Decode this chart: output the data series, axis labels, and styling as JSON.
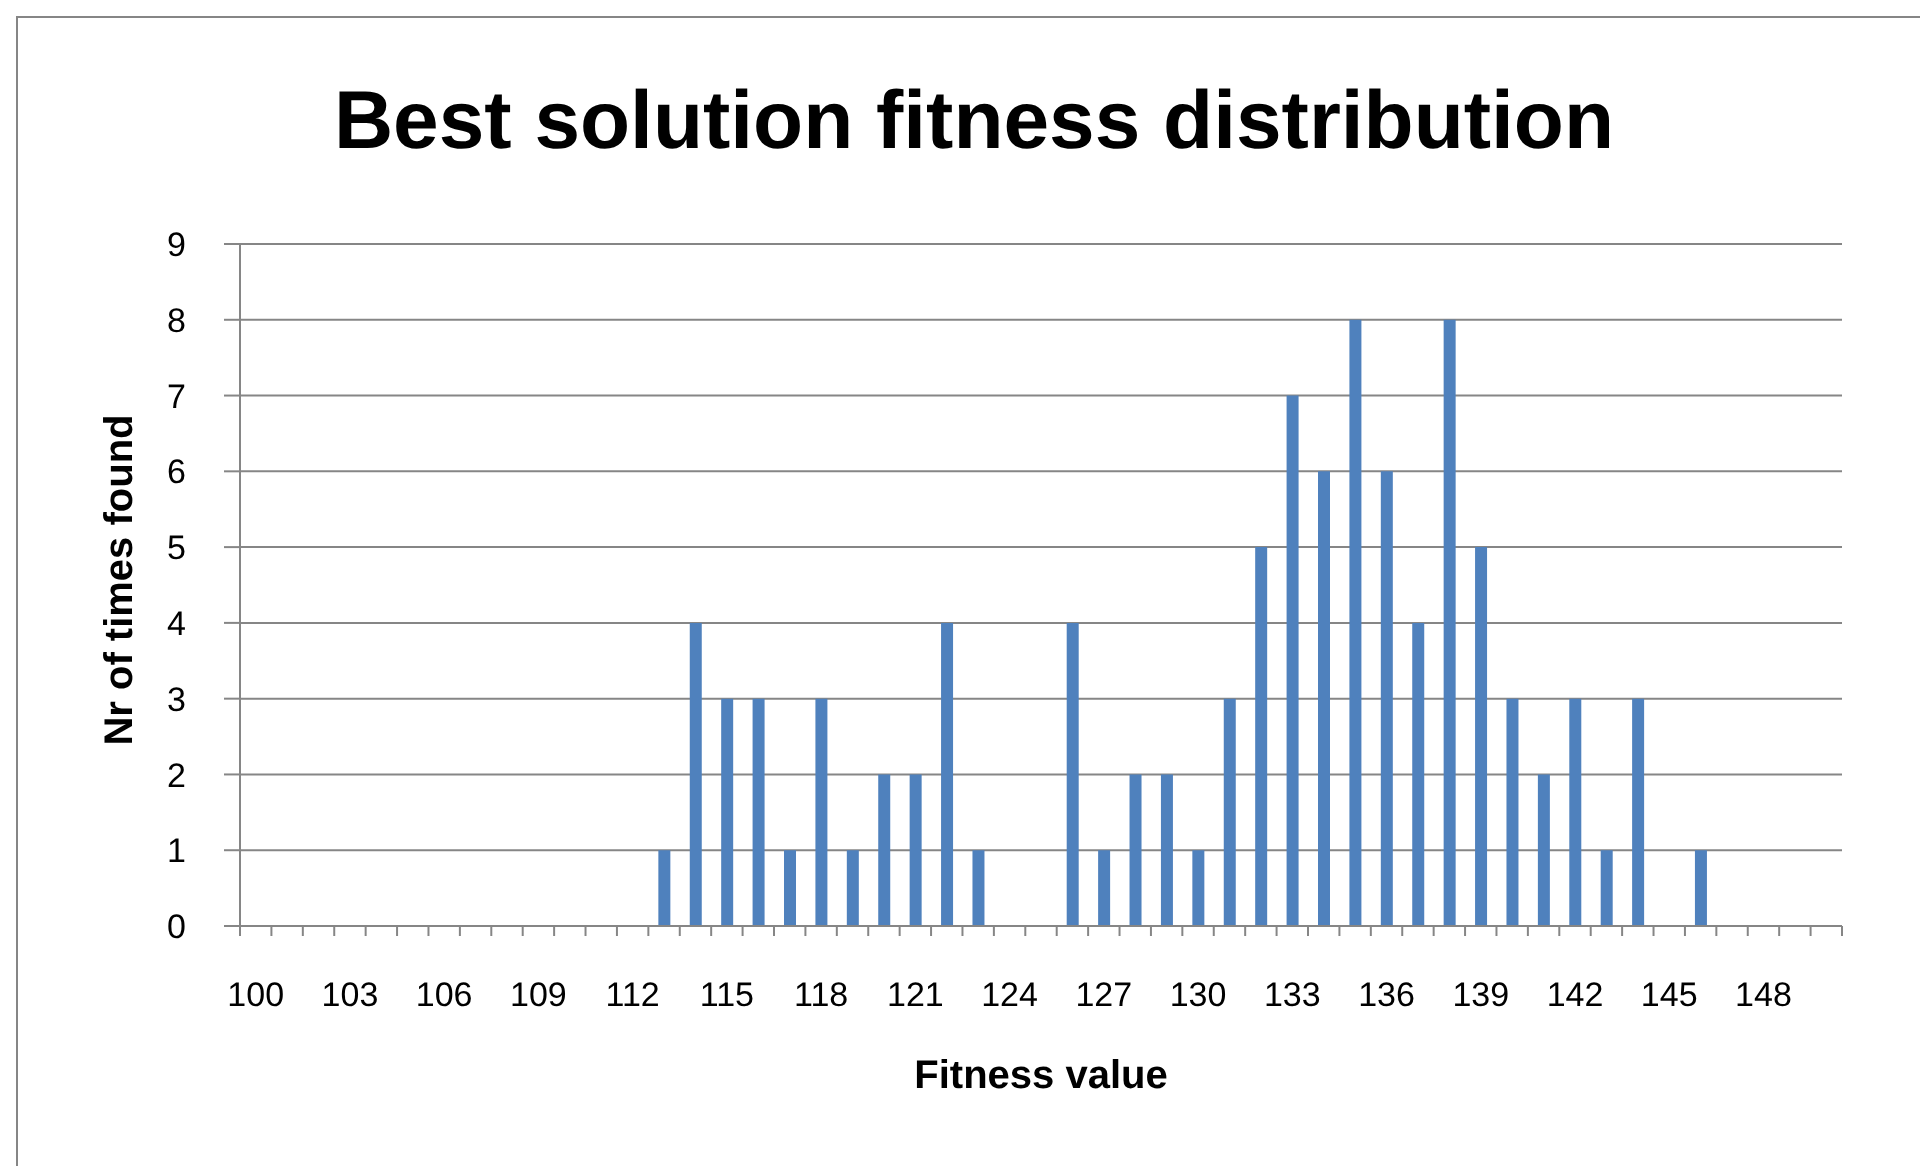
{
  "chart_data": {
    "type": "bar",
    "title": "Best solution fitness distribution",
    "xlabel": "Fitness value",
    "ylabel": "Nr of times found",
    "categories": [
      "100",
      null,
      null,
      "103",
      null,
      null,
      "106",
      null,
      null,
      "109",
      null,
      null,
      "112",
      null,
      null,
      "115",
      null,
      null,
      "118",
      null,
      null,
      "121",
      null,
      null,
      "124",
      null,
      null,
      "127",
      null,
      null,
      "130",
      null,
      null,
      "133",
      null,
      null,
      "136",
      null,
      null,
      "139",
      null,
      null,
      "142",
      null,
      null,
      "145",
      null,
      null,
      "148",
      null,
      null
    ],
    "values": [
      0,
      0,
      0,
      0,
      0,
      0,
      0,
      0,
      0,
      0,
      0,
      0,
      0,
      1,
      4,
      3,
      3,
      1,
      3,
      1,
      2,
      2,
      4,
      1,
      0,
      0,
      4,
      1,
      2,
      2,
      1,
      3,
      5,
      7,
      6,
      8,
      6,
      4,
      8,
      5,
      3,
      2,
      3,
      1,
      3,
      0,
      1,
      0,
      0,
      0,
      0
    ],
    "color": "#4f81bd",
    "ylim": [
      0,
      9
    ],
    "yticks": [
      0,
      1,
      2,
      3,
      4,
      5,
      6,
      7,
      8,
      9
    ],
    "grid": "y"
  }
}
